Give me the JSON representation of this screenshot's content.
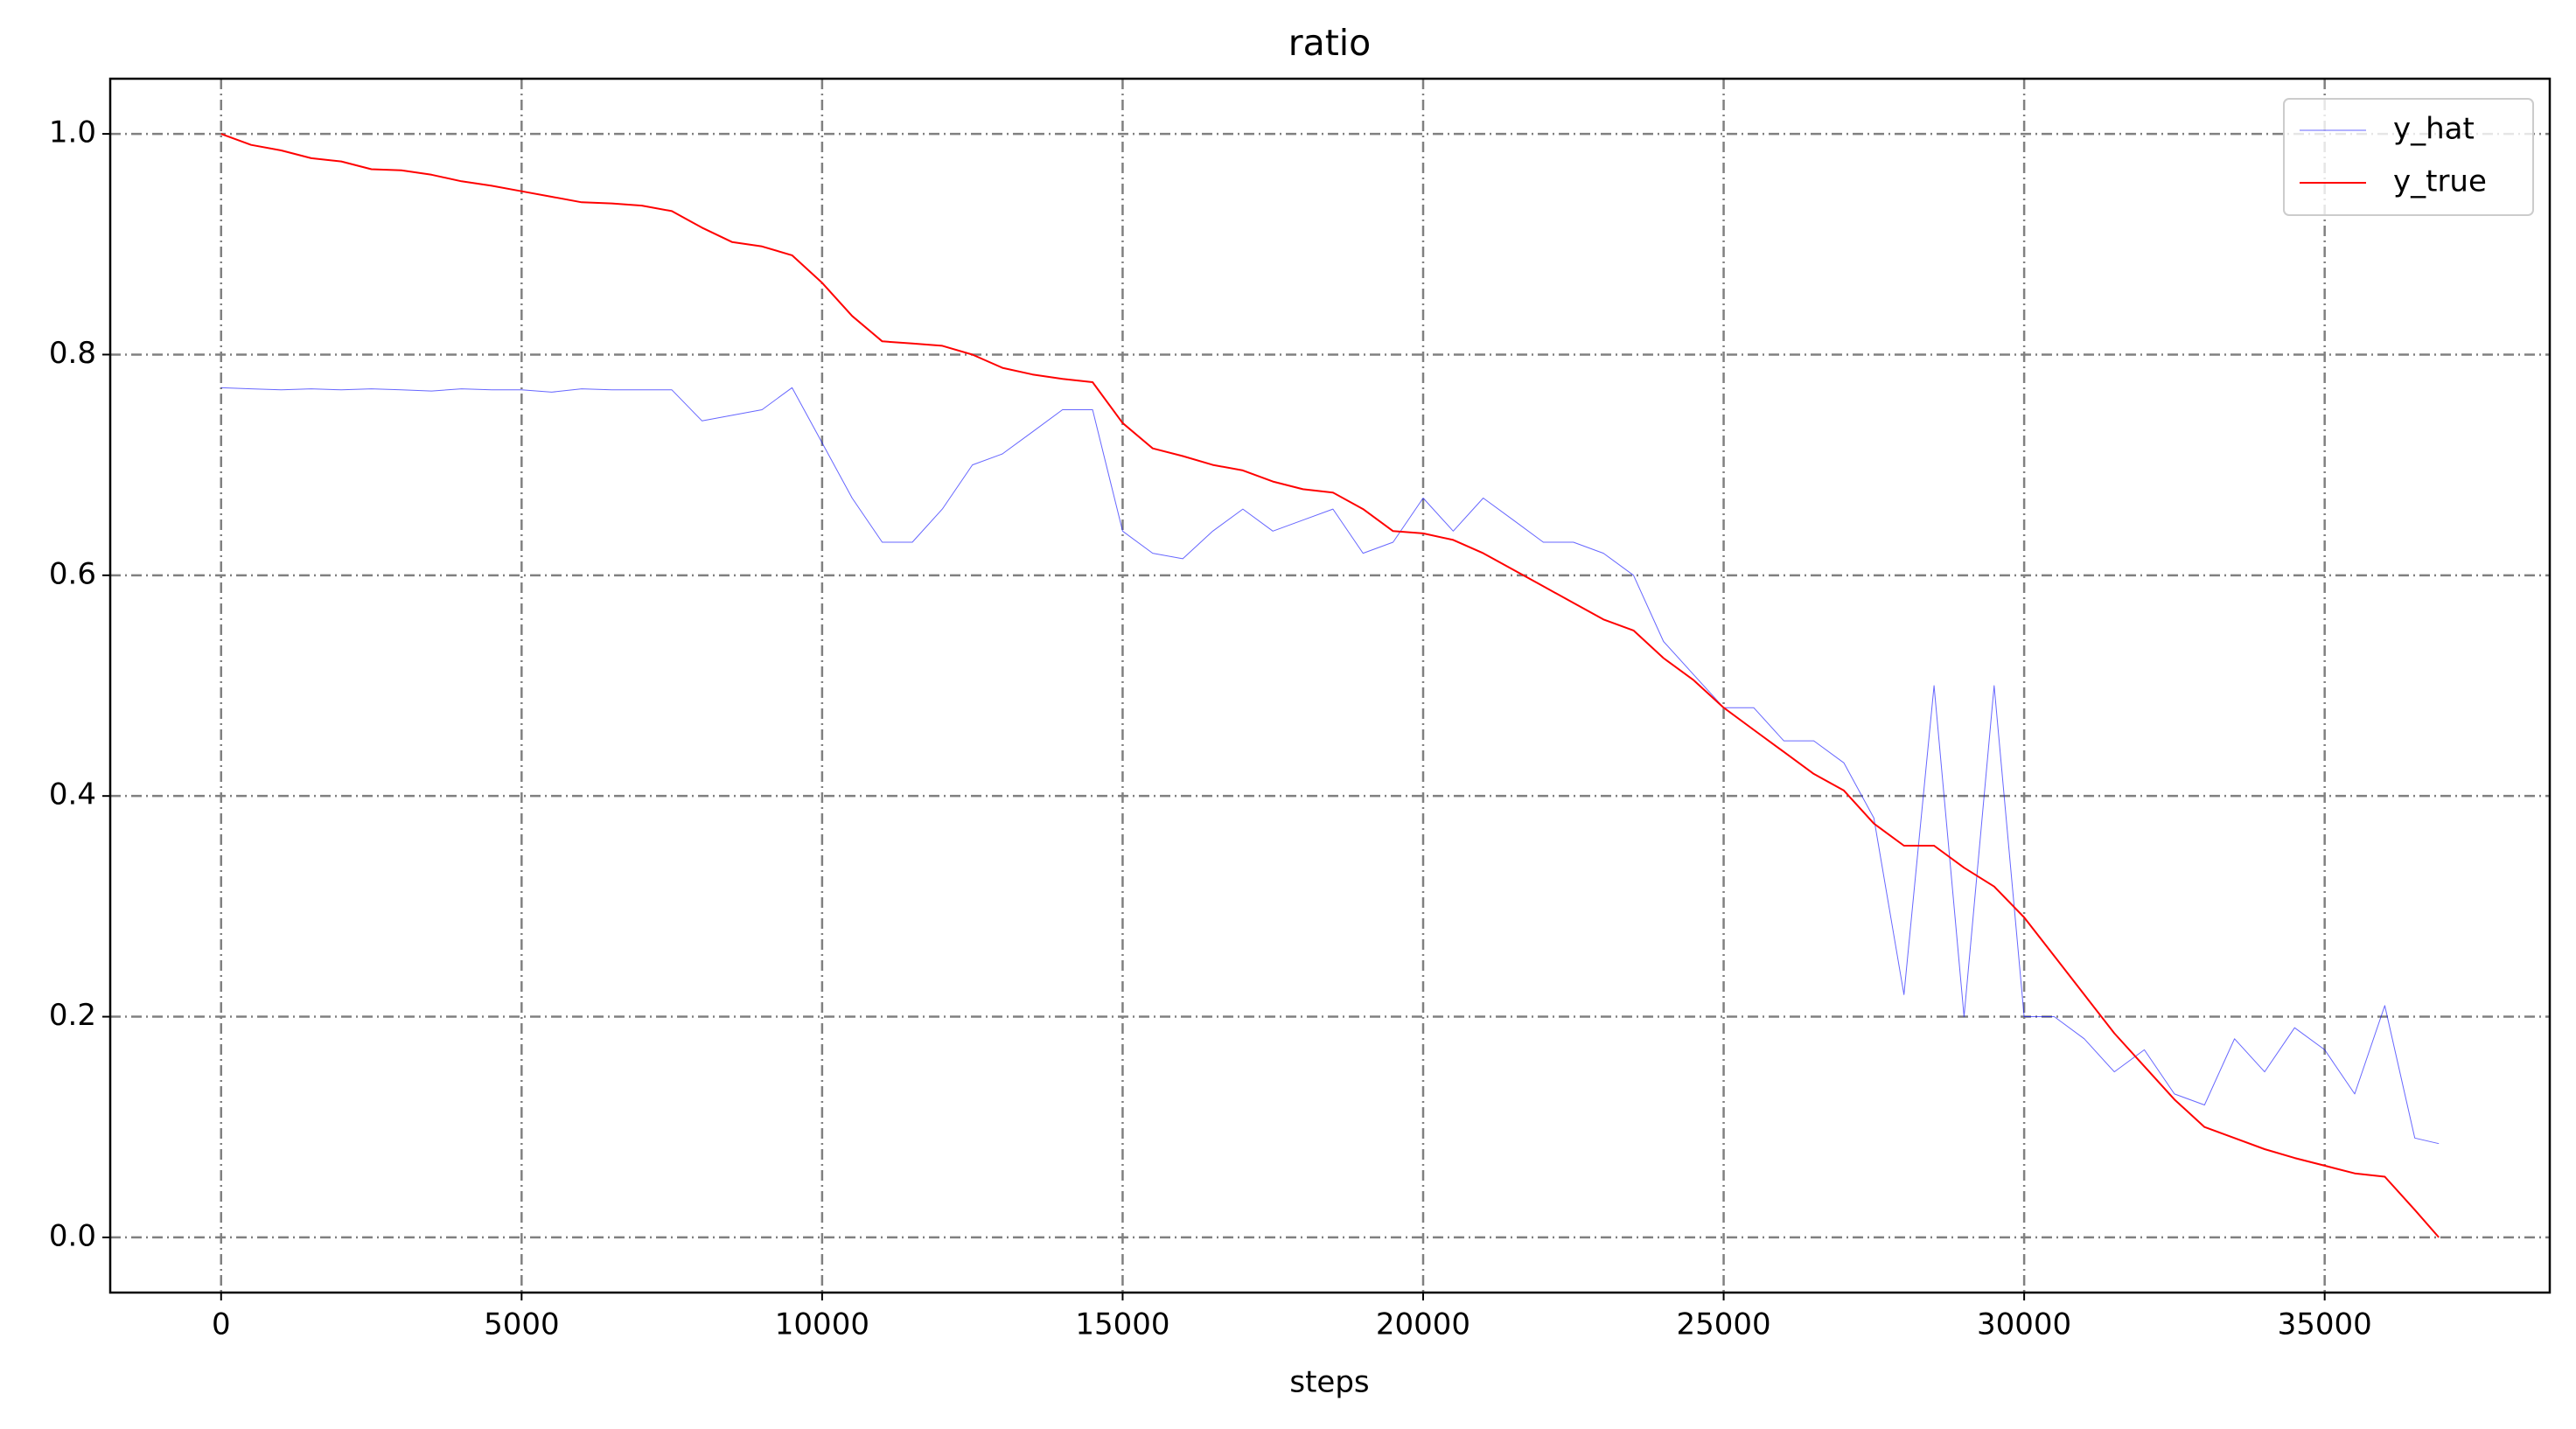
{
  "chart_data": {
    "type": "line",
    "title": "ratio",
    "x_label": "steps",
    "x": [
      0,
      500,
      1000,
      1500,
      2000,
      2500,
      3000,
      3500,
      4000,
      4500,
      5000,
      5500,
      6000,
      6500,
      7000,
      7500,
      8000,
      8500,
      9000,
      9500,
      10000,
      10500,
      11000,
      11500,
      12000,
      12500,
      13000,
      13500,
      14000,
      14500,
      15000,
      15500,
      16000,
      16500,
      17000,
      17500,
      18000,
      18500,
      19000,
      19500,
      20000,
      20500,
      21000,
      21500,
      22000,
      22500,
      23000,
      23500,
      24000,
      24500,
      25000,
      25500,
      26000,
      26500,
      27000,
      27500,
      28000,
      28500,
      29000,
      29500,
      30000,
      30500,
      31000,
      31500,
      32000,
      32500,
      33000,
      33500,
      34000,
      34500,
      35000,
      35500,
      36000,
      36500,
      36900
    ],
    "series": [
      {
        "name": "y_hat",
        "color": "#0000ff",
        "values": [
          0.77,
          0.769,
          0.768,
          0.769,
          0.768,
          0.769,
          0.768,
          0.767,
          0.769,
          0.768,
          0.768,
          0.766,
          0.769,
          0.768,
          0.768,
          0.768,
          0.74,
          0.745,
          0.75,
          0.77,
          0.72,
          0.67,
          0.63,
          0.63,
          0.66,
          0.7,
          0.71,
          0.73,
          0.75,
          0.75,
          0.64,
          0.62,
          0.615,
          0.64,
          0.66,
          0.64,
          0.65,
          0.66,
          0.62,
          0.63,
          0.67,
          0.64,
          0.67,
          0.65,
          0.63,
          0.63,
          0.62,
          0.6,
          0.54,
          0.51,
          0.48,
          0.48,
          0.45,
          0.45,
          0.43,
          0.38,
          0.22,
          0.5,
          0.2,
          0.5,
          0.2,
          0.2,
          0.18,
          0.15,
          0.17,
          0.13,
          0.12,
          0.18,
          0.15,
          0.19,
          0.17,
          0.13,
          0.21,
          0.09,
          0.085
        ]
      },
      {
        "name": "y_true",
        "color": "#ff0000",
        "values": [
          1.0,
          0.99,
          0.985,
          0.978,
          0.975,
          0.968,
          0.967,
          0.963,
          0.957,
          0.953,
          0.948,
          0.943,
          0.938,
          0.937,
          0.935,
          0.93,
          0.915,
          0.902,
          0.898,
          0.89,
          0.865,
          0.835,
          0.812,
          0.81,
          0.808,
          0.8,
          0.788,
          0.782,
          0.778,
          0.775,
          0.738,
          0.715,
          0.708,
          0.7,
          0.695,
          0.685,
          0.678,
          0.675,
          0.66,
          0.64,
          0.638,
          0.632,
          0.62,
          0.605,
          0.59,
          0.575,
          0.56,
          0.55,
          0.525,
          0.505,
          0.48,
          0.46,
          0.44,
          0.42,
          0.405,
          0.375,
          0.355,
          0.355,
          0.335,
          0.318,
          0.29,
          0.255,
          0.22,
          0.185,
          0.155,
          0.125,
          0.1,
          0.09,
          0.08,
          0.072,
          0.065,
          0.058,
          0.055,
          0.025,
          0.0
        ]
      }
    ],
    "xlim": [
      -1845,
      38745
    ],
    "ylim": [
      -0.05,
      1.05
    ],
    "xticks": [
      0,
      5000,
      10000,
      15000,
      20000,
      25000,
      30000,
      35000
    ],
    "yticks": [
      {
        "value": 0,
        "label": "0.0"
      },
      0.2,
      0.4,
      0.6,
      0.8,
      {
        "value": 1,
        "label": "1.0"
      }
    ],
    "grid": true,
    "legend": "upper right"
  }
}
